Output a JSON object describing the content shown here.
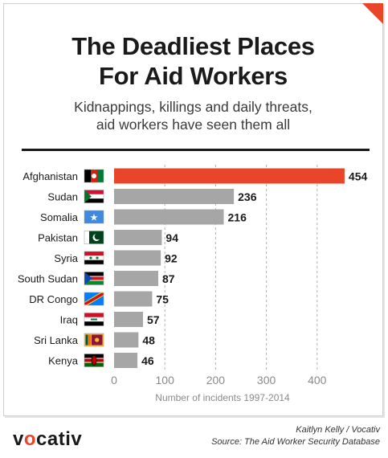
{
  "header": {
    "title_line1": "The Deadliest Places",
    "title_line2": "For Aid Workers",
    "subtitle_line1": "Kidnappings, killings and daily threats,",
    "subtitle_line2": "aid workers have seen them all"
  },
  "footer": {
    "brand_pre": "v",
    "brand_o": "o",
    "brand_post": "cativ",
    "credit": "Kaitlyn Kelly / Vocativ",
    "source": "Source: The Aid Worker Security Database"
  },
  "colors": {
    "highlight": "#e8452a",
    "bar": "#a6a6a6",
    "grid": "#b0b0b0"
  },
  "chart_data": {
    "type": "bar",
    "orientation": "horizontal",
    "categories": [
      "Afghanistan",
      "Sudan",
      "Somalia",
      "Pakistan",
      "Syria",
      "South Sudan",
      "DR Congo",
      "Iraq",
      "Sri Lanka",
      "Kenya"
    ],
    "values": [
      454,
      236,
      216,
      94,
      92,
      87,
      75,
      57,
      48,
      46
    ],
    "highlighted": [
      "Afghanistan"
    ],
    "xlabel": "Number of incidents 1997-2014",
    "xlim": [
      0,
      460
    ],
    "xticks": [
      0,
      100,
      200,
      300,
      400
    ],
    "grid": true,
    "data_labels": true
  }
}
